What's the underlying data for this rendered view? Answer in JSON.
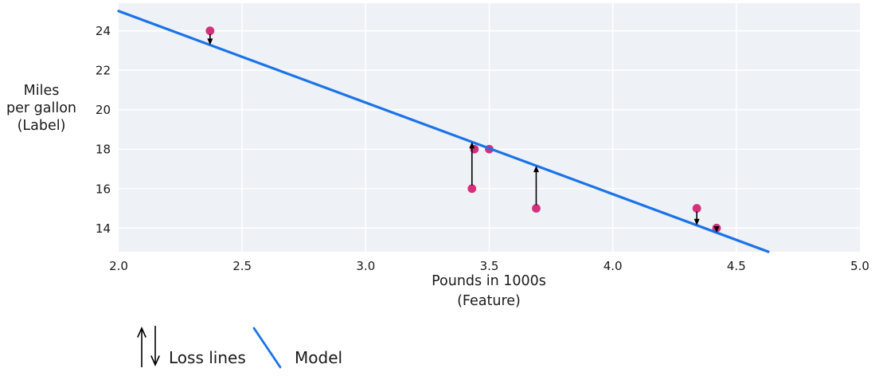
{
  "chart_data": {
    "type": "scatter",
    "title": "",
    "xlabel": "Pounds in 1000s (Feature)",
    "xlabel_lines": [
      "Pounds in 1000s",
      "(Feature)"
    ],
    "ylabel": "Miles per gallon (Label)",
    "ylabel_lines": [
      "Miles",
      "per gallon",
      "(Label)"
    ],
    "xlim": [
      2.0,
      5.0
    ],
    "ylim": [
      12.8,
      25.4
    ],
    "grid": true,
    "plot_bg": "#eef1f6",
    "grid_color": "#ffffff",
    "x_ticks": {
      "values": [
        2.0,
        2.5,
        3.0,
        3.5,
        4.0,
        4.5,
        5.0
      ],
      "labels": [
        "2.0",
        "2.5",
        "3.0",
        "3.5",
        "4.0",
        "4.5",
        "5.0"
      ]
    },
    "y_ticks": {
      "values": [
        14,
        16,
        18,
        20,
        22,
        24
      ],
      "labels": [
        "14",
        "16",
        "18",
        "20",
        "22",
        "24"
      ]
    },
    "points": [
      {
        "x": 2.37,
        "y": 24,
        "arrow": "down"
      },
      {
        "x": 3.43,
        "y": 16,
        "arrow": "up"
      },
      {
        "x": 3.44,
        "y": 18,
        "arrow": null
      },
      {
        "x": 3.5,
        "y": 18,
        "arrow": null
      },
      {
        "x": 3.69,
        "y": 15,
        "arrow": "up"
      },
      {
        "x": 4.34,
        "y": 15,
        "arrow": "down"
      },
      {
        "x": 4.42,
        "y": 14,
        "arrow": "down"
      }
    ],
    "point_color": "#d5307c",
    "model_line": {
      "slope": -4.64,
      "intercept": 34.28,
      "color": "#1a73e8"
    },
    "loss_arrow_color": "#000000",
    "legend_position": "bottom-left"
  },
  "legend": {
    "items": [
      {
        "label": "Loss lines",
        "symbol": "loss-arrows"
      },
      {
        "label": "Model",
        "symbol": "model-line"
      }
    ]
  }
}
